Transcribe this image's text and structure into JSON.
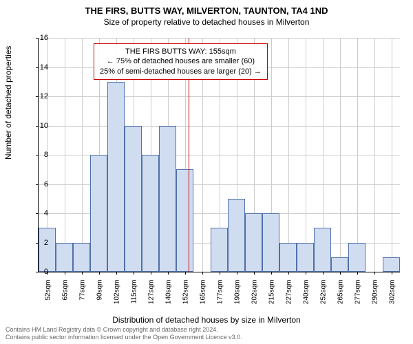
{
  "title": "THE FIRS, BUTTS WAY, MILVERTON, TAUNTON, TA4 1ND",
  "subtitle": "Size of property relative to detached houses in Milverton",
  "y_label": "Number of detached properties",
  "x_label": "Distribution of detached houses by size in Milverton",
  "chart": {
    "type": "histogram",
    "ylim": [
      0,
      16
    ],
    "ytick_step": 2,
    "bar_fill": "#d0dcf0",
    "bar_border": "#5070a8",
    "grid_color": "#cccccc",
    "background": "#ffffff",
    "marker_color": "#cc0000",
    "marker_value": 155,
    "x_categories": [
      "52sqm",
      "65sqm",
      "77sqm",
      "90sqm",
      "102sqm",
      "115sqm",
      "127sqm",
      "140sqm",
      "152sqm",
      "165sqm",
      "177sqm",
      "190sqm",
      "202sqm",
      "215sqm",
      "227sqm",
      "240sqm",
      "252sqm",
      "265sqm",
      "277sqm",
      "290sqm",
      "302sqm"
    ],
    "values": [
      3,
      2,
      2,
      8,
      13,
      10,
      8,
      10,
      7,
      0,
      3,
      5,
      4,
      4,
      2,
      2,
      3,
      1,
      2,
      0,
      1
    ]
  },
  "annotation": {
    "line1": "THE FIRS BUTTS WAY: 155sqm",
    "line2": "← 75% of detached houses are smaller (60)",
    "line3": "25% of semi-detached houses are larger (20) →"
  },
  "footer": {
    "line1": "Contains HM Land Registry data © Crown copyright and database right 2024.",
    "line2": "Contains public sector information licensed under the Open Government Licence v3.0."
  }
}
